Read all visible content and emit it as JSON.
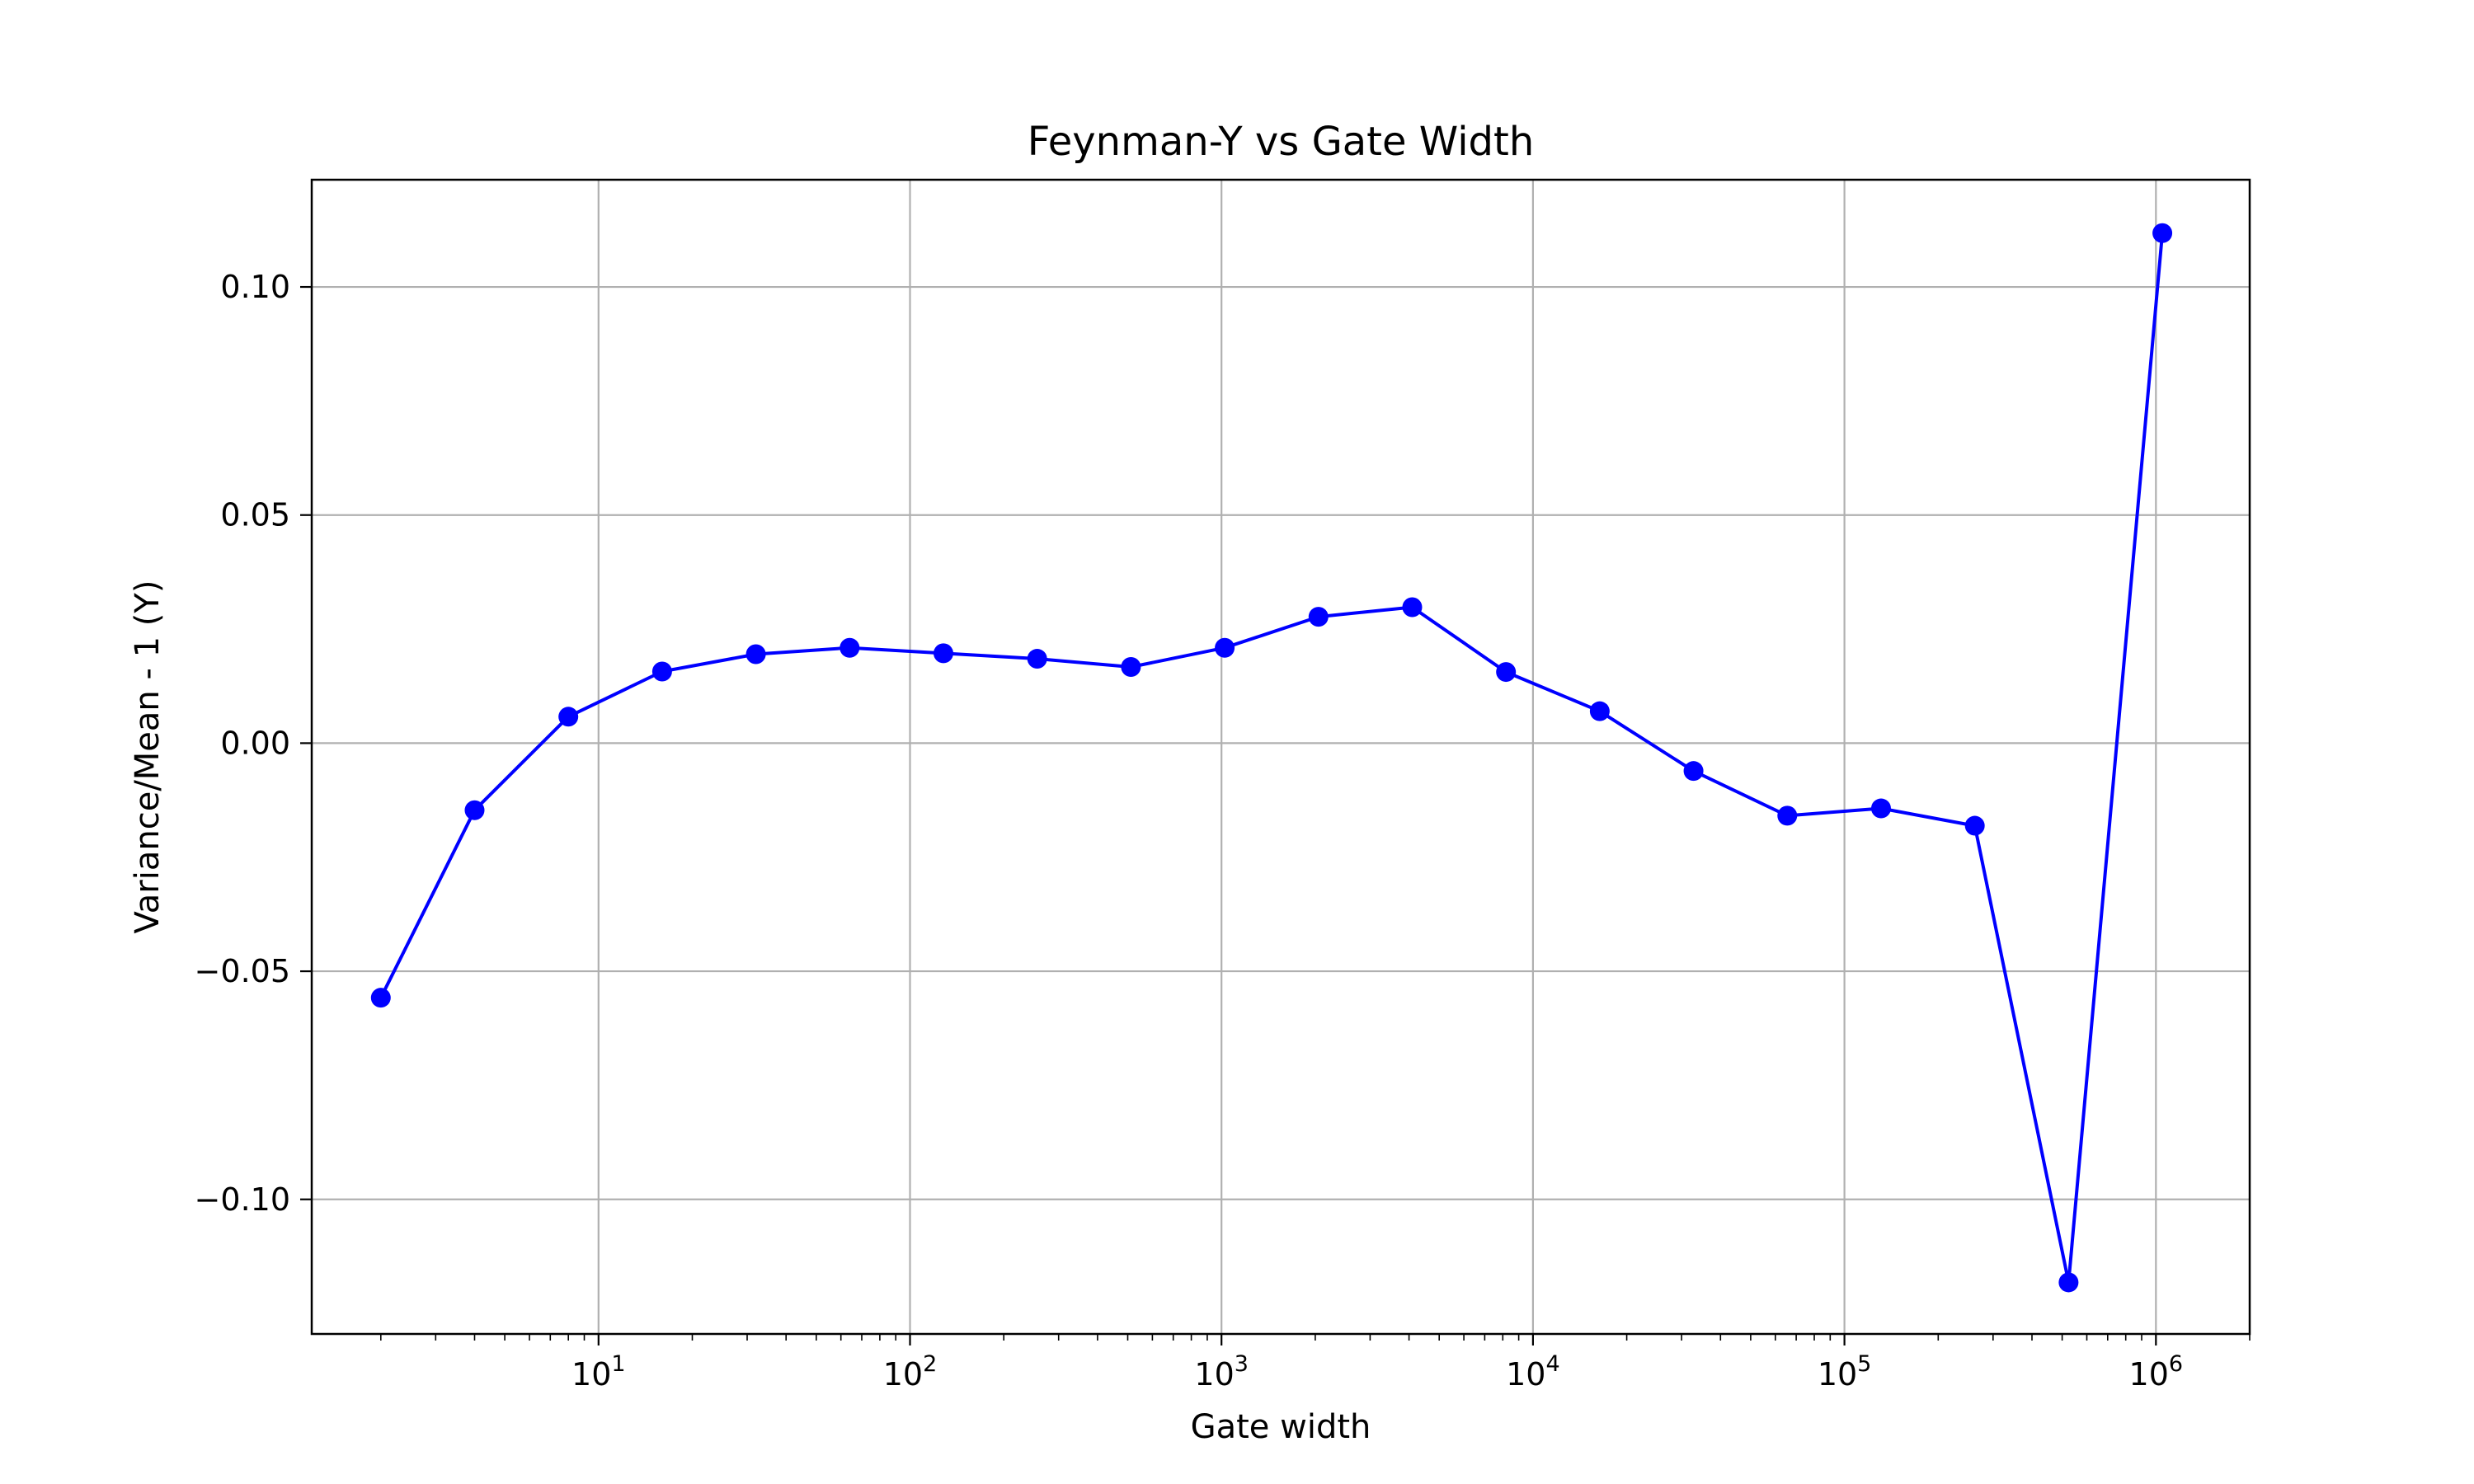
{
  "chart_data": {
    "type": "line",
    "title": "Feynman-Y vs Gate Width",
    "xlabel": "Gate width",
    "ylabel": "Variance/Mean - 1 (Y)",
    "x_scale": "log",
    "xlim": [
      1.2,
      2000000
    ],
    "ylim": [
      -0.1295,
      0.1235
    ],
    "grid": true,
    "line_color": "#0000ff",
    "marker": "circle",
    "x_ticks": [
      {
        "base": "10",
        "exp": "1",
        "value": 10
      },
      {
        "base": "10",
        "exp": "2",
        "value": 100
      },
      {
        "base": "10",
        "exp": "3",
        "value": 1000
      },
      {
        "base": "10",
        "exp": "4",
        "value": 10000
      },
      {
        "base": "10",
        "exp": "5",
        "value": 100000
      },
      {
        "base": "10",
        "exp": "6",
        "value": 1000000
      }
    ],
    "y_ticks": [
      {
        "label": "0.10",
        "value": 0.1
      },
      {
        "label": "0.05",
        "value": 0.05
      },
      {
        "label": "0.00",
        "value": 0.0
      },
      {
        "label": "−0.05",
        "value": -0.05
      },
      {
        "label": "−0.10",
        "value": -0.1
      }
    ],
    "series": [
      {
        "x": [
          2,
          4,
          8,
          16,
          32,
          64,
          128,
          256,
          512,
          1024,
          2048,
          4096,
          8192,
          16384,
          32768,
          65536,
          131072,
          262144,
          524288,
          1048576
        ],
        "y": [
          -0.0558,
          -0.0147,
          0.0058,
          0.0157,
          0.0195,
          0.0209,
          0.0197,
          0.0185,
          0.0167,
          0.0209,
          0.0277,
          0.0298,
          0.0156,
          0.007,
          -0.0061,
          -0.0159,
          -0.0143,
          -0.0181,
          -0.1182,
          0.1118
        ]
      }
    ]
  }
}
